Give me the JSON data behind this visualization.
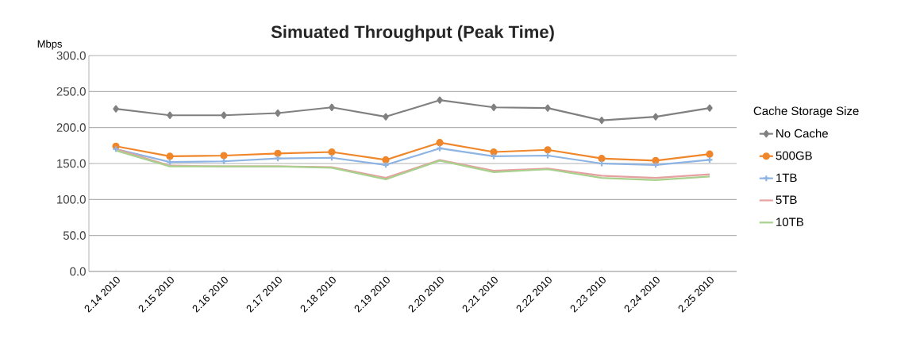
{
  "chart_data": {
    "type": "line",
    "title": "Simuated Throughput (Peak Time)",
    "ylabel": "Mbps",
    "legend_title": "Cache Storage Size",
    "categories": [
      "2.14 2010",
      "2.15 2010",
      "2.16 2010",
      "2.17 2010",
      "2.18 2010",
      "2.19 2010",
      "2.20 2010",
      "2.21 2010",
      "2.22 2010",
      "2.23 2010",
      "2.24 2010",
      "2.25 2010"
    ],
    "series": [
      {
        "name": "No Cache",
        "color": "#808080",
        "marker": "diamond",
        "values": [
          226,
          217,
          217,
          220,
          228,
          215,
          238,
          228,
          227,
          210,
          215,
          227
        ]
      },
      {
        "name": "500GB",
        "color": "#f0862a",
        "marker": "circle",
        "values": [
          174,
          160,
          161,
          164,
          166,
          155,
          179,
          166,
          169,
          157,
          154,
          163
        ]
      },
      {
        "name": "1TB",
        "color": "#8eb4e3",
        "marker": "cross",
        "values": [
          170,
          152,
          153,
          157,
          158,
          148,
          171,
          160,
          161,
          150,
          148,
          155
        ]
      },
      {
        "name": "5TB",
        "color": "#e6a0a0",
        "marker": "none",
        "values": [
          170,
          147,
          146,
          146,
          145,
          130,
          155,
          140,
          143,
          133,
          130,
          135
        ]
      },
      {
        "name": "10TB",
        "color": "#a9d18e",
        "marker": "none",
        "values": [
          168,
          146,
          146,
          146,
          144,
          128,
          154,
          138,
          142,
          130,
          127,
          132
        ]
      }
    ],
    "ylim": [
      0,
      300
    ],
    "yticks": [
      {
        "value": 0,
        "label": "0.0"
      },
      {
        "value": 50,
        "label": "50.0"
      },
      {
        "value": 100,
        "label": "100.0"
      },
      {
        "value": 150,
        "label": "150.0"
      },
      {
        "value": 200,
        "label": "200.0"
      },
      {
        "value": 250,
        "label": "250.0"
      },
      {
        "value": 300,
        "label": "300.0"
      }
    ],
    "grid": "y",
    "legend": "right"
  }
}
